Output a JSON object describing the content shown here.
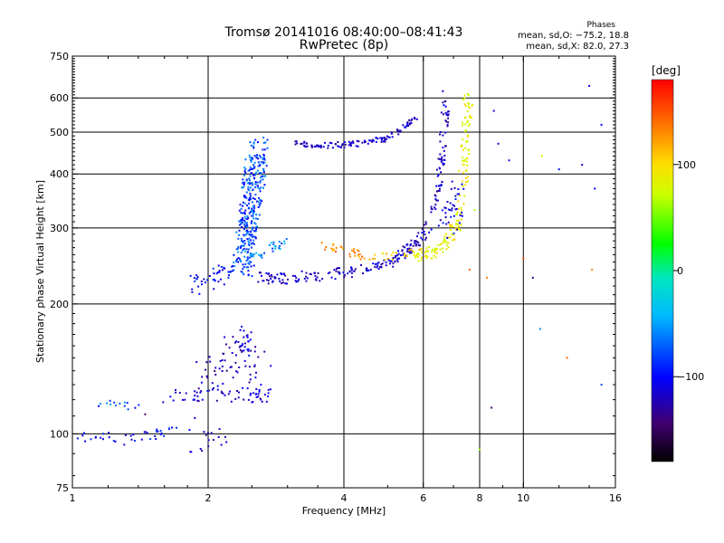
{
  "chart_data": {
    "type": "scatter",
    "title": "Tromsø 20141016 08:40:00–08:41:43",
    "subtitle": "RwPretec (8p)",
    "xlabel": "Frequency [MHz]",
    "ylabel": "Stationary phase Virtual Height [km]",
    "xscale": "log",
    "yscale": "log",
    "xlim": [
      1,
      16
    ],
    "ylim": [
      75,
      750
    ],
    "xticks": [
      1,
      2,
      4,
      6,
      8,
      10,
      16
    ],
    "xtick_labels": [
      "1",
      "2",
      "4",
      "6",
      "8",
      "10",
      "16"
    ],
    "xgrid": [
      2,
      4,
      6,
      8,
      10
    ],
    "yticks": [
      75,
      100,
      200,
      300,
      400,
      500,
      600,
      750
    ],
    "ytick_labels": [
      "75",
      "100",
      "200",
      "300",
      "400",
      "500",
      "600",
      "750"
    ],
    "ygrid": [
      100,
      200,
      300,
      400,
      500,
      600
    ],
    "grid": true,
    "stats": {
      "title": "Phases",
      "line_o": "mean, sd,O: −75.2, 18.8",
      "line_x": "mean, sd,X:  82.0, 27.3"
    },
    "colorbar": {
      "label": "[deg]",
      "ticks": [
        100,
        0,
        -100
      ],
      "tick_labels": [
        "100",
        "0",
        "−100"
      ],
      "range": [
        -180,
        180
      ],
      "colormap": "rainbow"
    },
    "color_encoding": "phase [deg]",
    "series": [
      {
        "traces": [
          {
            "x": [
              1.0,
              1.05,
              1.1,
              1.2,
              1.3,
              1.4,
              1.5,
              1.6,
              1.7,
              1.8,
              1.9
            ],
            "y": [
              97,
              98,
              96,
              98,
              97,
              99,
              100,
              101,
              103,
              105,
              108
            ],
            "phase": -105,
            "n": 40,
            "jx": 0.03,
            "jy": 0.03
          },
          {
            "x": [
              1.15,
              1.25,
              1.35,
              1.45
            ],
            "y": [
              118,
              117,
              116,
              115
            ],
            "phase": -85,
            "n": 14,
            "jx": 0.04,
            "jy": 0.02
          },
          {
            "x": [
              1.6,
              1.8,
              2.0,
              2.2,
              2.4,
              2.6,
              2.7
            ],
            "y": [
              120,
              122,
              124,
              123,
              125,
              122,
              125
            ],
            "phase": -115,
            "n": 60,
            "jx": 0.04,
            "jy": 0.04
          },
          {
            "x": [
              1.85,
              2.0,
              2.1,
              2.2
            ],
            "y": [
              92,
              96,
              95,
              98
            ],
            "phase": -120,
            "n": 16,
            "jx": 0.04,
            "jy": 0.06
          },
          {
            "x": [
              1.8,
              1.95,
              2.1,
              2.25
            ],
            "y": [
              215,
              225,
              230,
              240
            ],
            "phase": -105,
            "n": 45,
            "jx": 0.04,
            "jy": 0.05
          },
          {
            "x": [
              2.0,
              2.15,
              2.3,
              2.45,
              2.6
            ],
            "y": [
              135,
              145,
              155,
              150,
              140
            ],
            "phase": -125,
            "n": 70,
            "jx": 0.07,
            "jy": 0.1
          },
          {
            "x": [
              2.35,
              2.5
            ],
            "y": [
              170,
              160
            ],
            "phase": -110,
            "n": 18,
            "jx": 0.03,
            "jy": 0.06
          },
          {
            "x": [
              2.38,
              2.42,
              2.45,
              2.48,
              2.5,
              2.55,
              2.6
            ],
            "y": [
              240,
              270,
              300,
              330,
              370,
              410,
              460
            ],
            "phase": -85,
            "n": 320,
            "jx": 0.05,
            "jy": 0.08
          },
          {
            "x": [
              2.45,
              2.6,
              2.8,
              3.0
            ],
            "y": [
              255,
              265,
              270,
              275
            ],
            "phase": -70,
            "n": 30,
            "jx": 0.04,
            "jy": 0.03
          },
          {
            "x": [
              2.6,
              2.8,
              3.1,
              3.4,
              3.8,
              4.2,
              4.6,
              5.0,
              5.3,
              5.6,
              5.9,
              6.1,
              6.3,
              6.5,
              6.6,
              6.7,
              6.75
            ],
            "y": [
              230,
              228,
              230,
              232,
              235,
              238,
              243,
              250,
              258,
              268,
              282,
              300,
              330,
              380,
              450,
              530,
              610
            ],
            "phase": -120,
            "n": 260,
            "jx": 0.02,
            "jy": 0.03
          },
          {
            "x": [
              3.1,
              3.4,
              3.7,
              4.0,
              4.3,
              4.6,
              4.9,
              5.2,
              5.5,
              5.8
            ],
            "y": [
              470,
              468,
              466,
              468,
              470,
              475,
              482,
              495,
              515,
              545
            ],
            "phase": -120,
            "n": 120,
            "jx": 0.015,
            "jy": 0.015
          },
          {
            "x": [
              3.6,
              3.9,
              4.2,
              4.5
            ],
            "y": [
              272,
              268,
              262,
              258
            ],
            "phase": 130,
            "n": 30,
            "jx": 0.02,
            "jy": 0.02
          },
          {
            "x": [
              4.6,
              5.1,
              5.6,
              6.0
            ],
            "y": [
              256,
              258,
              262,
              266
            ],
            "phase": 110,
            "n": 25,
            "jx": 0.02,
            "jy": 0.02
          },
          {
            "x": [
              5.8,
              6.2,
              6.6,
              7.0,
              7.2,
              7.35,
              7.45,
              7.5,
              7.55
            ],
            "y": [
              255,
              262,
              272,
              290,
              320,
              380,
              450,
              530,
              620
            ],
            "phase": 85,
            "n": 160,
            "jx": 0.025,
            "jy": 0.03
          },
          {
            "x": [
              6.6,
              6.8,
              7.0,
              7.2
            ],
            "y": [
              300,
              320,
              340,
              360
            ],
            "phase": -110,
            "n": 40,
            "jx": 0.04,
            "jy": 0.1
          }
        ]
      }
    ],
    "scatter_extra": [
      {
        "x": 7.6,
        "y": 240,
        "phase": 140
      },
      {
        "x": 7.8,
        "y": 330,
        "phase": 60
      },
      {
        "x": 8.3,
        "y": 230,
        "phase": 130
      },
      {
        "x": 8.6,
        "y": 560,
        "phase": -110
      },
      {
        "x": 8.8,
        "y": 470,
        "phase": -120
      },
      {
        "x": 9.3,
        "y": 430,
        "phase": -110
      },
      {
        "x": 10.0,
        "y": 255,
        "phase": 150
      },
      {
        "x": 10.5,
        "y": 230,
        "phase": -140
      },
      {
        "x": 10.9,
        "y": 175,
        "phase": -70
      },
      {
        "x": 11.0,
        "y": 440,
        "phase": 85
      },
      {
        "x": 12.0,
        "y": 410,
        "phase": -100
      },
      {
        "x": 13.5,
        "y": 420,
        "phase": -120
      },
      {
        "x": 14.0,
        "y": 640,
        "phase": -110
      },
      {
        "x": 14.4,
        "y": 370,
        "phase": -100
      },
      {
        "x": 14.9,
        "y": 130,
        "phase": -85
      },
      {
        "x": 14.9,
        "y": 520,
        "phase": -100
      },
      {
        "x": 14.2,
        "y": 240,
        "phase": 130
      },
      {
        "x": 12.5,
        "y": 150,
        "phase": 140
      },
      {
        "x": 8.5,
        "y": 115,
        "phase": -150
      },
      {
        "x": 8.0,
        "y": 92,
        "phase": 60
      },
      {
        "x": 1.45,
        "y": 111,
        "phase": -150
      }
    ]
  }
}
